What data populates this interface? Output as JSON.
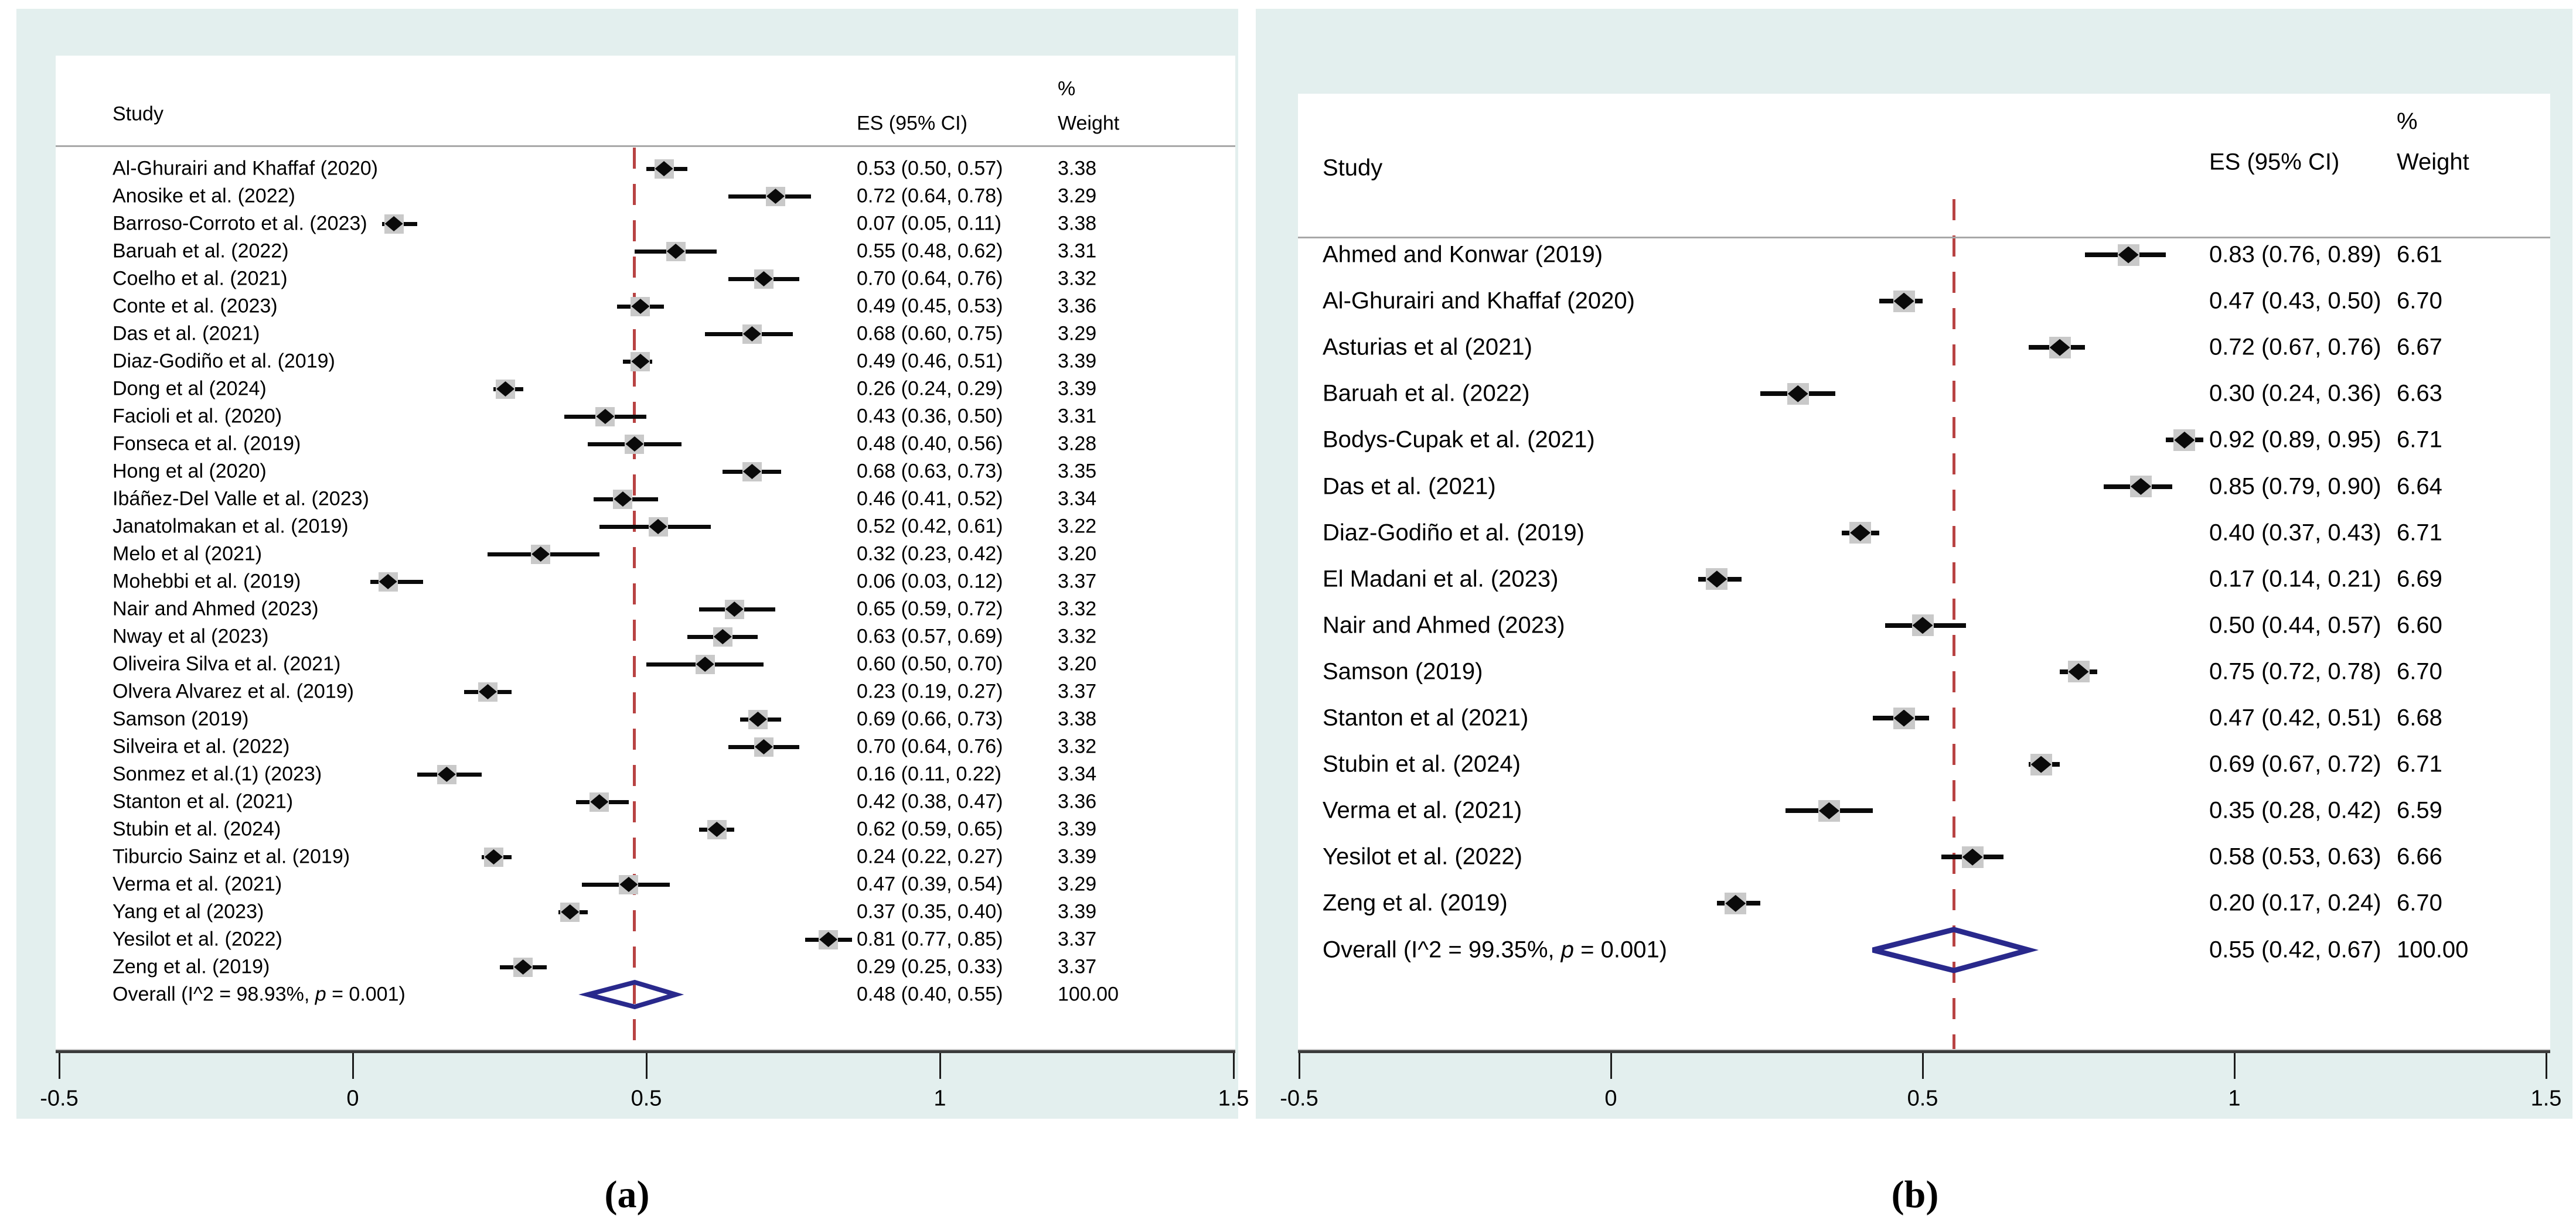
{
  "theme": {
    "panel_bg": "#e3efee",
    "plot_bg": "#ffffff",
    "text_color": "#000000",
    "separator_gray": "#a8a8a8",
    "axis_dark": "#3b3b3b",
    "axis_highlight": "#c9c9c9",
    "tick_color": "#1c1c1c",
    "null_line_red": "#b84343",
    "overall_diamond_navy": "#29298c",
    "weight_box_gray": "#c9c9c9",
    "ci_black": "#0a0a0a"
  },
  "chart_data": [
    {
      "type": "forest",
      "panel_label": "(a)",
      "columns": {
        "study": "Study",
        "es": "ES (95% CI)",
        "weight_line1": "%",
        "weight_line2": "Weight"
      },
      "x_axis": {
        "min": -0.5,
        "max": 1.5,
        "ticks": [
          -0.5,
          0,
          0.5,
          1,
          1.5
        ],
        "tick_labels": [
          "-0.5",
          "0",
          "0.5",
          "1",
          "1.5"
        ]
      },
      "null_line_at": 0.48,
      "legend_position": "none",
      "grid": false,
      "studies": [
        {
          "label": "Al-Ghurairi and Khaffaf  (2020)",
          "es": 0.53,
          "ci": [
            0.5,
            0.57
          ],
          "es_text": "0.53 (0.50, 0.57)",
          "weight_text": "3.38"
        },
        {
          "label": "Anosike et al. (2022)",
          "es": 0.72,
          "ci": [
            0.64,
            0.78
          ],
          "es_text": "0.72 (0.64, 0.78)",
          "weight_text": "3.29"
        },
        {
          "label": "Barroso-Corroto et al. (2023)",
          "es": 0.07,
          "ci": [
            0.05,
            0.11
          ],
          "es_text": "0.07 (0.05, 0.11)",
          "weight_text": "3.38"
        },
        {
          "label": "Baruah et al. (2022)",
          "es": 0.55,
          "ci": [
            0.48,
            0.62
          ],
          "es_text": "0.55 (0.48, 0.62)",
          "weight_text": "3.31"
        },
        {
          "label": "Coelho et al. (2021)",
          "es": 0.7,
          "ci": [
            0.64,
            0.76
          ],
          "es_text": "0.70 (0.64, 0.76)",
          "weight_text": "3.32"
        },
        {
          "label": "Conte et al. (2023)",
          "es": 0.49,
          "ci": [
            0.45,
            0.53
          ],
          "es_text": "0.49 (0.45, 0.53)",
          "weight_text": "3.36"
        },
        {
          "label": "Das et al.  (2021)",
          "es": 0.68,
          "ci": [
            0.6,
            0.75
          ],
          "es_text": "0.68 (0.60, 0.75)",
          "weight_text": "3.29"
        },
        {
          "label": "Diaz-Godiño et al. (2019)",
          "es": 0.49,
          "ci": [
            0.46,
            0.51
          ],
          "es_text": "0.49 (0.46, 0.51)",
          "weight_text": "3.39"
        },
        {
          "label": "Dong et al  (2024)",
          "es": 0.26,
          "ci": [
            0.24,
            0.29
          ],
          "es_text": "0.26 (0.24, 0.29)",
          "weight_text": "3.39"
        },
        {
          "label": "Facioli et al.  (2020)",
          "es": 0.43,
          "ci": [
            0.36,
            0.5
          ],
          "es_text": "0.43 (0.36, 0.50)",
          "weight_text": "3.31"
        },
        {
          "label": "Fonseca et al. (2019)",
          "es": 0.48,
          "ci": [
            0.4,
            0.56
          ],
          "es_text": "0.48 (0.40, 0.56)",
          "weight_text": "3.28"
        },
        {
          "label": "Hong et al  (2020)",
          "es": 0.68,
          "ci": [
            0.63,
            0.73
          ],
          "es_text": "0.68 (0.63, 0.73)",
          "weight_text": "3.35"
        },
        {
          "label": "Ibáñez-Del Valle et al. (2023)",
          "es": 0.46,
          "ci": [
            0.41,
            0.52
          ],
          "es_text": "0.46 (0.41, 0.52)",
          "weight_text": "3.34"
        },
        {
          "label": "Janatolmakan et al. (2019)",
          "es": 0.52,
          "ci": [
            0.42,
            0.61
          ],
          "es_text": "0.52 (0.42, 0.61)",
          "weight_text": "3.22"
        },
        {
          "label": "Melo et al  (2021)",
          "es": 0.32,
          "ci": [
            0.23,
            0.42
          ],
          "es_text": "0.32 (0.23, 0.42)",
          "weight_text": "3.20"
        },
        {
          "label": "Mohebbi et al.  (2019)",
          "es": 0.06,
          "ci": [
            0.03,
            0.12
          ],
          "es_text": "0.06 (0.03, 0.12)",
          "weight_text": "3.37"
        },
        {
          "label": "Nair and Ahmed (2023)",
          "es": 0.65,
          "ci": [
            0.59,
            0.72
          ],
          "es_text": "0.65 (0.59, 0.72)",
          "weight_text": "3.32"
        },
        {
          "label": "Nway et al (2023)",
          "es": 0.63,
          "ci": [
            0.57,
            0.69
          ],
          "es_text": "0.63 (0.57, 0.69)",
          "weight_text": "3.32"
        },
        {
          "label": "Oliveira Silva et al. (2021)",
          "es": 0.6,
          "ci": [
            0.5,
            0.7
          ],
          "es_text": "0.60 (0.50, 0.70)",
          "weight_text": "3.20"
        },
        {
          "label": "Olvera Alvarez et al. (2019)",
          "es": 0.23,
          "ci": [
            0.19,
            0.27
          ],
          "es_text": "0.23 (0.19, 0.27)",
          "weight_text": "3.37"
        },
        {
          "label": "Samson  (2019)",
          "es": 0.69,
          "ci": [
            0.66,
            0.73
          ],
          "es_text": "0.69 (0.66, 0.73)",
          "weight_text": "3.38"
        },
        {
          "label": "Silveira et al. (2022)",
          "es": 0.7,
          "ci": [
            0.64,
            0.76
          ],
          "es_text": "0.70 (0.64, 0.76)",
          "weight_text": "3.32"
        },
        {
          "label": "Sonmez et al.(1) (2023)",
          "es": 0.16,
          "ci": [
            0.11,
            0.22
          ],
          "es_text": "0.16 (0.11, 0.22)",
          "weight_text": "3.34"
        },
        {
          "label": "Stanton et al. (2021)",
          "es": 0.42,
          "ci": [
            0.38,
            0.47
          ],
          "es_text": "0.42 (0.38, 0.47)",
          "weight_text": "3.36"
        },
        {
          "label": "Stubin et al. (2024)",
          "es": 0.62,
          "ci": [
            0.59,
            0.65
          ],
          "es_text": "0.62 (0.59, 0.65)",
          "weight_text": "3.39"
        },
        {
          "label": "Tiburcio Sainz et al. (2019)",
          "es": 0.24,
          "ci": [
            0.22,
            0.27
          ],
          "es_text": "0.24 (0.22, 0.27)",
          "weight_text": "3.39"
        },
        {
          "label": "Verma et al.  (2021)",
          "es": 0.47,
          "ci": [
            0.39,
            0.54
          ],
          "es_text": "0.47 (0.39, 0.54)",
          "weight_text": "3.29"
        },
        {
          "label": "Yang et al  (2023)",
          "es": 0.37,
          "ci": [
            0.35,
            0.4
          ],
          "es_text": "0.37 (0.35, 0.40)",
          "weight_text": "3.39"
        },
        {
          "label": "Yesilot et al. (2022)",
          "es": 0.81,
          "ci": [
            0.77,
            0.85
          ],
          "es_text": "0.81 (0.77, 0.85)",
          "weight_text": "3.37"
        },
        {
          "label": "Zeng et al.  (2019)",
          "es": 0.29,
          "ci": [
            0.25,
            0.33
          ],
          "es_text": "0.29 (0.25, 0.33)",
          "weight_text": "3.37"
        }
      ],
      "overall": {
        "label_prefix": "Overall  (I^2 = 98.93%, ",
        "label_italic": "p",
        "label_suffix": " = 0.001)",
        "es": 0.48,
        "ci": [
          0.4,
          0.55
        ],
        "es_text": "0.48 (0.40, 0.55)",
        "weight_text": "100.00"
      }
    },
    {
      "type": "forest",
      "panel_label": "(b)",
      "columns": {
        "study": "Study",
        "es": "ES (95% CI)",
        "weight_line1": "%",
        "weight_line2": "Weight"
      },
      "x_axis": {
        "min": -0.5,
        "max": 1.5,
        "ticks": [
          -0.5,
          0,
          0.5,
          1,
          1.5
        ],
        "tick_labels": [
          "-0.5",
          "0",
          "0.5",
          "1",
          "1.5"
        ]
      },
      "null_line_at": 0.55,
      "legend_position": "none",
      "grid": false,
      "studies": [
        {
          "label": "Ahmed and Konwar (2019)",
          "es": 0.83,
          "ci": [
            0.76,
            0.89
          ],
          "es_text": "0.83 (0.76, 0.89)",
          "weight_text": "6.61"
        },
        {
          "label": "Al-Ghurairi and Khaffaf  (2020)",
          "es": 0.47,
          "ci": [
            0.43,
            0.5
          ],
          "es_text": "0.47 (0.43, 0.50)",
          "weight_text": "6.70"
        },
        {
          "label": "Asturias et al (2021)",
          "es": 0.72,
          "ci": [
            0.67,
            0.76
          ],
          "es_text": "0.72 (0.67, 0.76)",
          "weight_text": "6.67"
        },
        {
          "label": "Baruah et al. (2022)",
          "es": 0.3,
          "ci": [
            0.24,
            0.36
          ],
          "es_text": "0.30 (0.24, 0.36)",
          "weight_text": "6.63"
        },
        {
          "label": "Bodys-Cupak et al.  (2021)",
          "es": 0.92,
          "ci": [
            0.89,
            0.95
          ],
          "es_text": "0.92 (0.89, 0.95)",
          "weight_text": "6.71"
        },
        {
          "label": "Das et al. (2021)",
          "es": 0.85,
          "ci": [
            0.79,
            0.9
          ],
          "es_text": "0.85 (0.79, 0.90)",
          "weight_text": "6.64"
        },
        {
          "label": "Diaz-Godiño et al. (2019)",
          "es": 0.4,
          "ci": [
            0.37,
            0.43
          ],
          "es_text": "0.40 (0.37, 0.43)",
          "weight_text": "6.71"
        },
        {
          "label": "El Madani et al. (2023)",
          "es": 0.17,
          "ci": [
            0.14,
            0.21
          ],
          "es_text": "0.17 (0.14, 0.21)",
          "weight_text": "6.69"
        },
        {
          "label": "Nair and Ahmed (2023)",
          "es": 0.5,
          "ci": [
            0.44,
            0.57
          ],
          "es_text": "0.50 (0.44, 0.57)",
          "weight_text": "6.60"
        },
        {
          "label": "Samson  (2019)",
          "es": 0.75,
          "ci": [
            0.72,
            0.78
          ],
          "es_text": "0.75 (0.72, 0.78)",
          "weight_text": "6.70"
        },
        {
          "label": "Stanton et al (2021)",
          "es": 0.47,
          "ci": [
            0.42,
            0.51
          ],
          "es_text": "0.47 (0.42, 0.51)",
          "weight_text": "6.68"
        },
        {
          "label": "Stubin et al. (2024)",
          "es": 0.69,
          "ci": [
            0.67,
            0.72
          ],
          "es_text": "0.69 (0.67, 0.72)",
          "weight_text": "6.71"
        },
        {
          "label": "Verma et al.  (2021)",
          "es": 0.35,
          "ci": [
            0.28,
            0.42
          ],
          "es_text": "0.35 (0.28, 0.42)",
          "weight_text": "6.59"
        },
        {
          "label": "Yesilot et al.  (2022)",
          "es": 0.58,
          "ci": [
            0.53,
            0.63
          ],
          "es_text": "0.58 (0.53, 0.63)",
          "weight_text": "6.66"
        },
        {
          "label": "Zeng et al. (2019)",
          "es": 0.2,
          "ci": [
            0.17,
            0.24
          ],
          "es_text": "0.20 (0.17, 0.24)",
          "weight_text": "6.70"
        }
      ],
      "overall": {
        "label_prefix": "Overall  (I^2 = 99.35%, ",
        "label_italic": "p",
        "label_suffix": " = 0.001)",
        "es": 0.55,
        "ci": [
          0.42,
          0.67
        ],
        "es_text": "0.55 (0.42, 0.67)",
        "weight_text": "100.00"
      }
    }
  ]
}
